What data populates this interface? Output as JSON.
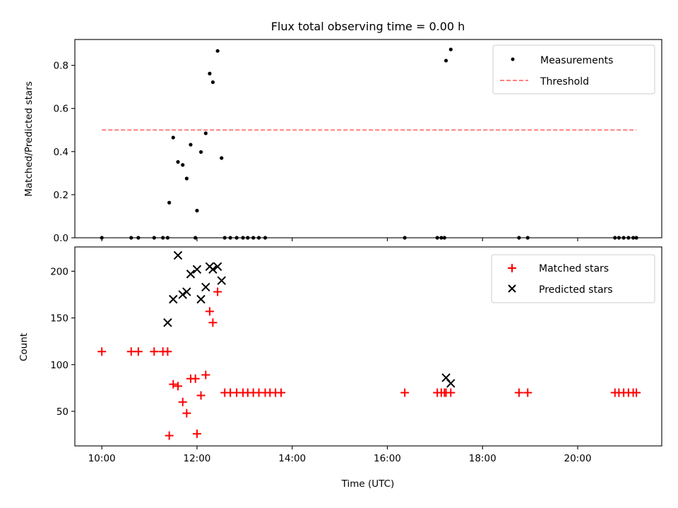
{
  "chart_data": [
    {
      "type": "scatter",
      "title": "Flux total observing time = 0.00 h",
      "xlabel": "",
      "ylabel": "Matched/Predicted stars",
      "xlim": [
        "09:26",
        "21:46"
      ],
      "ylim": [
        0,
        0.92
      ],
      "yticks": [
        0,
        0.2,
        0.4,
        0.6,
        0.8
      ],
      "ytick_labels": [
        "0.0",
        "0.2",
        "0.4",
        "0.6",
        "0.8"
      ],
      "x_tick_labels": [],
      "legend_position": "upper right",
      "series": [
        {
          "name": "Measurements",
          "kind": "scatter",
          "marker": "dot",
          "color": "#000000",
          "points": [
            [
              "10:00",
              0.0
            ],
            [
              "10:37",
              0.0
            ],
            [
              "10:46",
              0.0
            ],
            [
              "11:06",
              0.0
            ],
            [
              "11:17",
              0.0
            ],
            [
              "11:23",
              0.0
            ],
            [
              "11:25",
              0.163
            ],
            [
              "11:30",
              0.465
            ],
            [
              "11:36",
              0.352
            ],
            [
              "11:42",
              0.338
            ],
            [
              "11:47",
              0.275
            ],
            [
              "11:52",
              0.432
            ],
            [
              "11:58",
              0.0
            ],
            [
              "12:00",
              0.126
            ],
            [
              "12:05",
              0.398
            ],
            [
              "12:11",
              0.485
            ],
            [
              "12:16",
              0.762
            ],
            [
              "12:20",
              0.722
            ],
            [
              "12:26",
              0.867
            ],
            [
              "12:31",
              0.37
            ],
            [
              "12:35",
              0.0
            ],
            [
              "12:42",
              0.0
            ],
            [
              "12:50",
              0.0
            ],
            [
              "12:58",
              0.0
            ],
            [
              "13:04",
              0.0
            ],
            [
              "13:11",
              0.0
            ],
            [
              "13:18",
              0.0
            ],
            [
              "13:26",
              0.0
            ],
            [
              "16:22",
              0.0
            ],
            [
              "17:03",
              0.0
            ],
            [
              "17:08",
              0.0
            ],
            [
              "17:12",
              0.0
            ],
            [
              "17:14",
              0.822
            ],
            [
              "17:20",
              0.874
            ],
            [
              "18:46",
              0.0
            ],
            [
              "18:57",
              0.0
            ],
            [
              "20:47",
              0.0
            ],
            [
              "20:52",
              0.0
            ],
            [
              "20:58",
              0.0
            ],
            [
              "21:04",
              0.0
            ],
            [
              "21:10",
              0.0
            ],
            [
              "21:14",
              0.0
            ]
          ]
        },
        {
          "name": "Threshold",
          "kind": "line",
          "style": "dashed",
          "color": "#ff7f7f",
          "points": [
            [
              "10:00",
              0.5
            ],
            [
              "21:14",
              0.5
            ]
          ]
        }
      ]
    },
    {
      "type": "scatter",
      "title": "",
      "xlabel": "Time (UTC)",
      "ylabel": "Count",
      "xlim": [
        "09:26",
        "21:46"
      ],
      "ylim": [
        13,
        226
      ],
      "yticks": [
        50,
        100,
        150,
        200
      ],
      "ytick_labels": [
        "50",
        "100",
        "150",
        "200"
      ],
      "xticks": [
        "10:00",
        "12:00",
        "14:00",
        "16:00",
        "18:00",
        "20:00"
      ],
      "x_tick_labels": [
        "10:00",
        "12:00",
        "14:00",
        "16:00",
        "18:00",
        "20:00"
      ],
      "legend_position": "upper right",
      "series": [
        {
          "name": "Matched stars",
          "marker": "plus",
          "color": "#ff0000",
          "points": [
            [
              "10:00",
              114
            ],
            [
              "10:37",
              114
            ],
            [
              "10:46",
              114
            ],
            [
              "11:06",
              114
            ],
            [
              "11:17",
              114
            ],
            [
              "11:23",
              114
            ],
            [
              "11:25",
              24
            ],
            [
              "11:30",
              79
            ],
            [
              "11:36",
              77
            ],
            [
              "11:42",
              60
            ],
            [
              "11:47",
              48
            ],
            [
              "11:52",
              85
            ],
            [
              "11:58",
              85
            ],
            [
              "12:00",
              26
            ],
            [
              "12:05",
              67
            ],
            [
              "12:11",
              89
            ],
            [
              "12:16",
              157
            ],
            [
              "12:20",
              145
            ],
            [
              "12:26",
              178
            ],
            [
              "12:35",
              70
            ],
            [
              "12:42",
              70
            ],
            [
              "12:50",
              70
            ],
            [
              "12:58",
              70
            ],
            [
              "13:04",
              70
            ],
            [
              "13:11",
              70
            ],
            [
              "13:18",
              70
            ],
            [
              "13:26",
              70
            ],
            [
              "13:32",
              70
            ],
            [
              "13:39",
              70
            ],
            [
              "13:46",
              70
            ],
            [
              "16:22",
              70
            ],
            [
              "17:03",
              70
            ],
            [
              "17:08",
              70
            ],
            [
              "17:12",
              70
            ],
            [
              "17:14",
              70
            ],
            [
              "17:20",
              70
            ],
            [
              "18:46",
              70
            ],
            [
              "18:57",
              70
            ],
            [
              "20:47",
              70
            ],
            [
              "20:52",
              70
            ],
            [
              "20:58",
              70
            ],
            [
              "21:04",
              70
            ],
            [
              "21:10",
              70
            ],
            [
              "21:14",
              70
            ]
          ]
        },
        {
          "name": "Predicted stars",
          "marker": "x",
          "color": "#000000",
          "points": [
            [
              "11:23",
              145
            ],
            [
              "11:30",
              170
            ],
            [
              "11:36",
              217
            ],
            [
              "11:42",
              175
            ],
            [
              "11:47",
              178
            ],
            [
              "11:52",
              197
            ],
            [
              "12:00",
              202
            ],
            [
              "12:05",
              170
            ],
            [
              "12:11",
              183
            ],
            [
              "12:16",
              205
            ],
            [
              "12:20",
              202
            ],
            [
              "12:26",
              205
            ],
            [
              "12:31",
              190
            ],
            [
              "17:14",
              86
            ],
            [
              "17:20",
              80
            ]
          ]
        }
      ]
    }
  ]
}
